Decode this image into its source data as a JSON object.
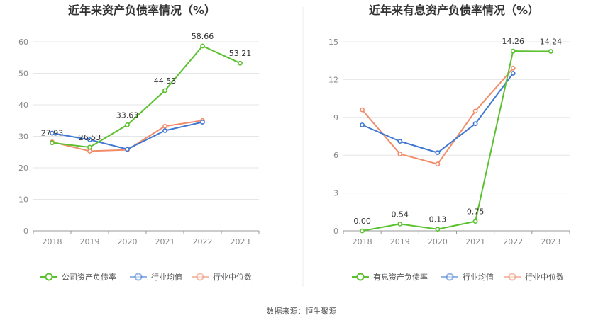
{
  "source_text": "数据来源：恒生聚源",
  "colors": {
    "company": "#5bc12f",
    "industry_avg": "#3f77d4",
    "industry_median": "#f08c6a",
    "grid": "#e6e6e6",
    "axis": "#999999"
  },
  "chart_data": [
    {
      "type": "line",
      "title": "近年来资产负债率情况（%）",
      "categories": [
        "2018",
        "2019",
        "2020",
        "2021",
        "2022",
        "2023"
      ],
      "ylim": [
        0,
        60
      ],
      "yticks": [
        0,
        10,
        20,
        30,
        40,
        50,
        60
      ],
      "grid": true,
      "legend_position": "bottom",
      "series": [
        {
          "name": "公司资产负债率",
          "color": "#5bc12f",
          "values": [
            27.93,
            26.53,
            33.63,
            44.53,
            58.66,
            53.21
          ],
          "labels": [
            "27.93",
            "26.53",
            "33.63",
            "44.53",
            "58.66",
            "53.21"
          ]
        },
        {
          "name": "行业均值",
          "color": "#3f77d4",
          "values": [
            31.0,
            28.9,
            25.9,
            31.8,
            34.5,
            null
          ]
        },
        {
          "name": "行业中位数",
          "color": "#f08c6a",
          "values": [
            28.2,
            25.3,
            25.7,
            33.2,
            35.0,
            null
          ]
        }
      ]
    },
    {
      "type": "line",
      "title": "近年来有息资产负债率情况（%）",
      "categories": [
        "2018",
        "2019",
        "2020",
        "2021",
        "2022",
        "2023"
      ],
      "ylim": [
        0,
        15
      ],
      "yticks": [
        0,
        3,
        6,
        9,
        12,
        15
      ],
      "grid": true,
      "legend_position": "bottom",
      "series": [
        {
          "name": "有息资产负债率",
          "color": "#5bc12f",
          "values": [
            0.0,
            0.54,
            0.13,
            0.75,
            14.26,
            14.24
          ],
          "labels": [
            "0.00",
            "0.54",
            "0.13",
            "0.75",
            "14.26",
            "14.24"
          ]
        },
        {
          "name": "行业均值",
          "color": "#3f77d4",
          "values": [
            8.4,
            7.1,
            6.2,
            8.5,
            12.5,
            null
          ]
        },
        {
          "name": "行业中位数",
          "color": "#f08c6a",
          "values": [
            9.6,
            6.1,
            5.3,
            9.5,
            12.9,
            null
          ]
        }
      ]
    }
  ]
}
